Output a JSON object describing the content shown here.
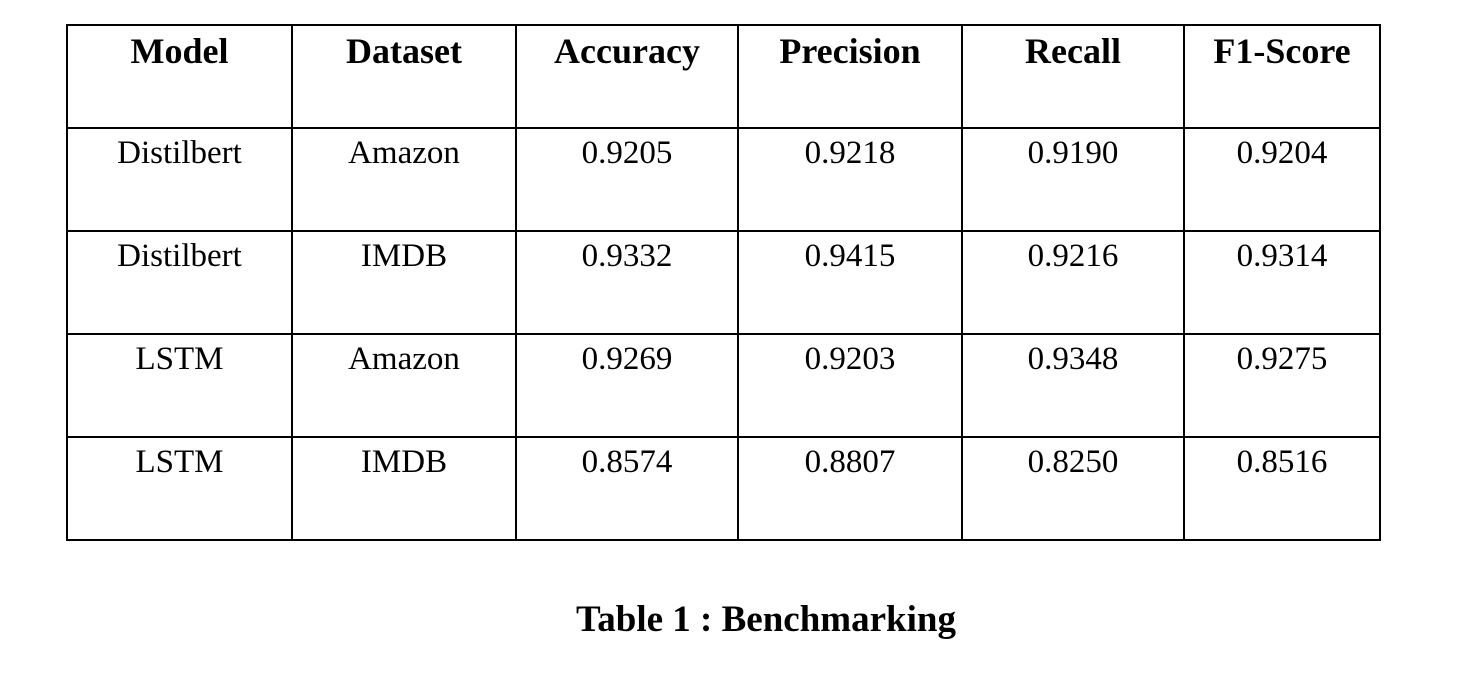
{
  "table": {
    "headers": [
      "Model",
      "Dataset",
      "Accuracy",
      "Precision",
      "Recall",
      "F1-Score"
    ],
    "rows": [
      [
        "Distilbert",
        "Amazon",
        "0.9205",
        "0.9218",
        "0.9190",
        "0.9204"
      ],
      [
        "Distilbert",
        "IMDB",
        "0.9332",
        "0.9415",
        "0.9216",
        "0.9314"
      ],
      [
        "LSTM",
        "Amazon",
        "0.9269",
        "0.9203",
        "0.9348",
        "0.9275"
      ],
      [
        "LSTM",
        "IMDB",
        "0.8574",
        "0.8807",
        "0.8250",
        "0.8516"
      ]
    ]
  },
  "caption": "Table 1 : Benchmarking"
}
